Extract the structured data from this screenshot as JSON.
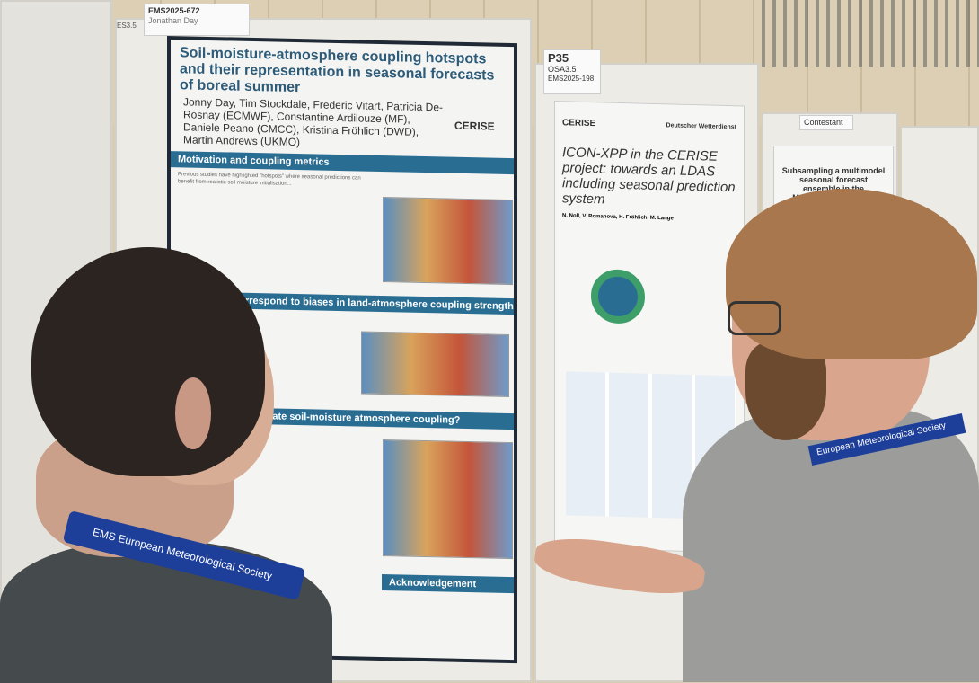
{
  "poster1": {
    "board_code": "EMS2025-672",
    "board_name": "Jonathan Day",
    "side_label": "ES3.5",
    "title": "Soil-moisture-atmosphere coupling hotspots and their representation in seasonal forecasts of boreal summer",
    "authors": "Jonny Day, Tim Stockdale, Frederic Vitart, Patricia De-Rosnay (ECMWF), Constantine Ardilouze (MF), Daniele Peano (CMCC), Kristina Fröhlich (DWD), Martin Andrews (UKMO)",
    "logo": "CERISE",
    "sections": [
      "Motivation and coupling metrics",
      "T2m skill correspond to biases in land-atmosphere coupling strength",
      "...ls overestimate soil-moisture atmosphere coupling?",
      "Acknowledgement"
    ],
    "body_snippet": "Previous studies have highlighted \"hotspots\" where seasonal predictions can benefit from realistic soil moisture initialisation..."
  },
  "poster2": {
    "board_number": "P35",
    "session": "OSA3.5",
    "board_code": "EMS2025-198",
    "logo": "CERISE",
    "org": "Deutscher Wetterdienst",
    "title": "ICON-XPP in the CERISE project: towards an LDAS including seasonal prediction system",
    "authors": "N. Noll, V. Romanova, H. Fröhlich, M. Lange"
  },
  "poster3": {
    "tag": "Contestant",
    "title": "Subsampling a multimodel seasonal forecast ensemble in the Mediterranean region"
  },
  "lanyard_text": "European Meteorological Society",
  "lanyard_logo": "EMS",
  "colors": {
    "poster_accent": "#2a6d92",
    "lanyard": "#1d3f9a",
    "wall": "#d8ccb2"
  }
}
